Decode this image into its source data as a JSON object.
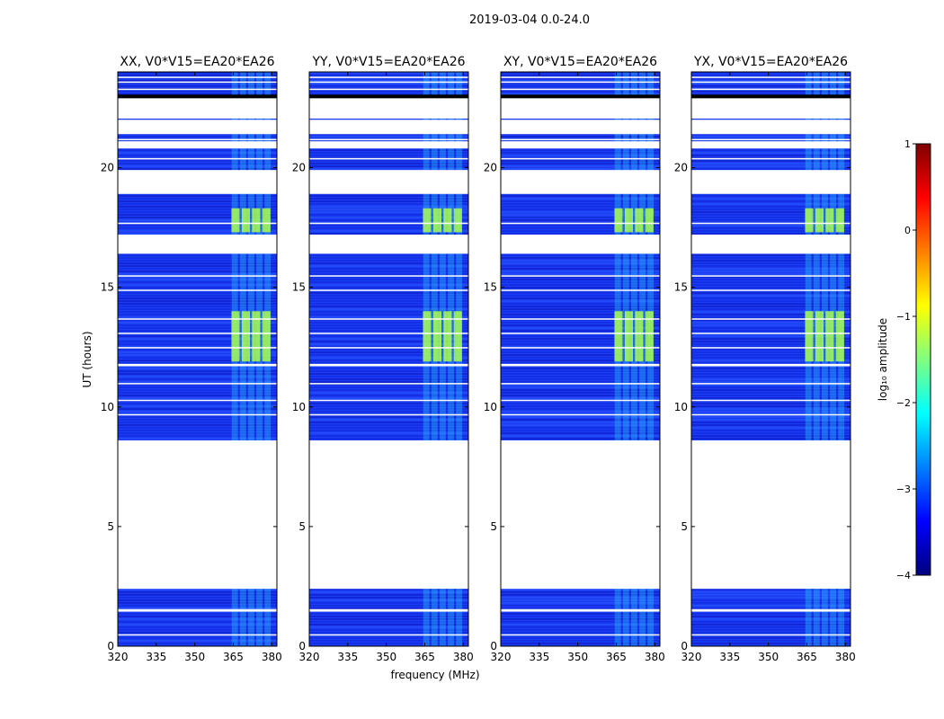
{
  "figure": {
    "suptitle": "2019-03-04 0.0-24.0"
  },
  "chart_data": {
    "type": "heatmap",
    "title": "2019-03-04 0.0-24.0",
    "xlabel": "frequency (MHz)",
    "ylabel": "UT (hours)",
    "xlim": [
      320,
      382
    ],
    "ylim": [
      0,
      24
    ],
    "xticks": [
      320,
      335,
      350,
      365,
      380
    ],
    "yticks": [
      0,
      5,
      10,
      15,
      20
    ],
    "panels": [
      {
        "title": "XX, V0*V15=EA20*EA26",
        "polarization": "XX"
      },
      {
        "title": "YY, V0*V15=EA20*EA26",
        "polarization": "YY"
      },
      {
        "title": "XY, V0*V15=EA20*EA26",
        "polarization": "XY"
      },
      {
        "title": "YX, V0*V15=EA20*EA26",
        "polarization": "YX"
      }
    ],
    "data_segments_hours": [
      [
        0,
        2.4
      ],
      [
        8.6,
        22.9
      ],
      [
        23.0,
        24.0
      ]
    ],
    "flagged_gaps_hours": [
      [
        2.4,
        8.6
      ],
      [
        16.4,
        17.2
      ],
      [
        18.9,
        19.9
      ],
      [
        20.8,
        21.1
      ],
      [
        21.4,
        22.0
      ],
      [
        22.05,
        22.9
      ],
      [
        1.45,
        1.55
      ],
      [
        11.7,
        11.8
      ]
    ],
    "highlight_band_mhz": [
      364,
      380
    ],
    "bright_times_hours": [
      [
        11.9,
        14.0
      ],
      [
        17.3,
        18.3
      ]
    ],
    "colorbar": {
      "label": "log₁₀ amplitude",
      "range": [
        -4,
        1
      ],
      "ticks": [
        -4,
        -3,
        -2,
        -1,
        0,
        1
      ],
      "tick_labels": [
        "−4",
        "−3",
        "−2",
        "−1",
        "0",
        "1"
      ],
      "colormap": [
        "#00007f",
        "#0000ff",
        "#007fff",
        "#00ffff",
        "#7fff7f",
        "#ffff00",
        "#ff7f00",
        "#ff0000",
        "#7f0000"
      ]
    }
  }
}
